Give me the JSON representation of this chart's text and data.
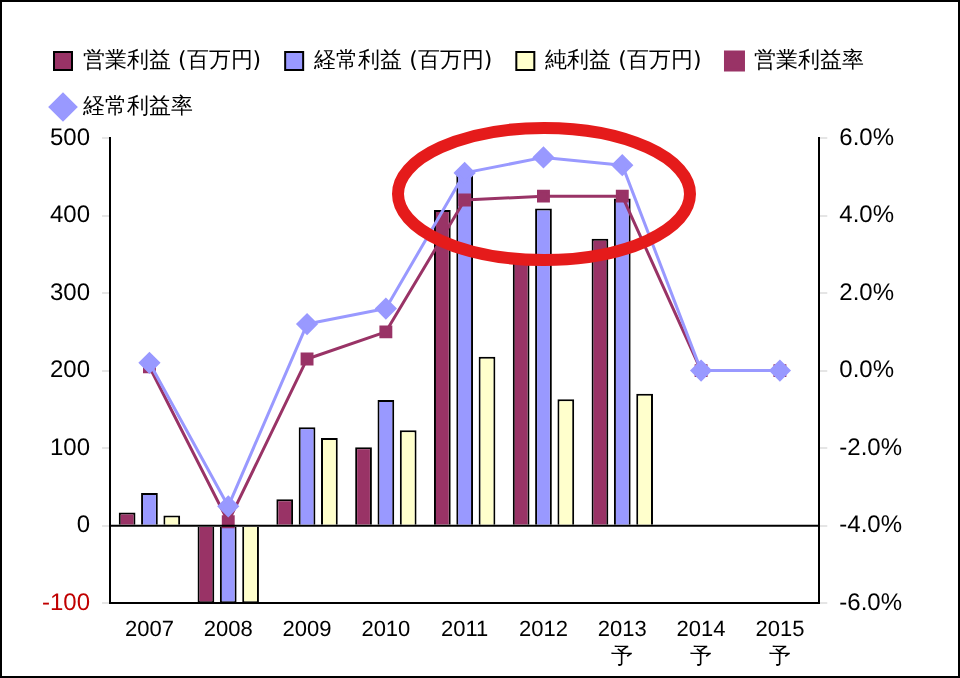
{
  "chart_data": {
    "type": "bar",
    "categories": [
      "2007",
      "2008",
      "2009",
      "2010",
      "2011",
      "2012",
      "2013\n予",
      "2014\n予",
      "2015\n予"
    ],
    "series": [
      {
        "name": "営業利益 (百万円)",
        "color": "#993366",
        "values": [
          17,
          -100,
          34,
          101,
          407,
          340,
          370,
          null,
          null
        ]
      },
      {
        "name": "経常利益 (百万円)",
        "color": "#9999ff",
        "values": [
          42,
          -100,
          127,
          162,
          455,
          409,
          422,
          null,
          null
        ]
      },
      {
        "name": "純利益 (百万円)",
        "color": "#ffffcc",
        "values": [
          13,
          -100,
          113,
          123,
          218,
          163,
          170,
          null,
          null
        ]
      },
      {
        "name": "営業利益率",
        "type": "line",
        "axis": "y2",
        "marker": "square",
        "color": "#993366",
        "values": [
          0.1,
          -3.9,
          0.3,
          1.0,
          4.4,
          4.5,
          4.5,
          0.0,
          0.0
        ]
      },
      {
        "name": "経常利益率",
        "type": "line",
        "axis": "y2",
        "marker": "diamond",
        "color": "#9999ff",
        "values": [
          0.2,
          -3.5,
          1.2,
          1.6,
          5.1,
          5.5,
          5.3,
          0.0,
          0.0
        ]
      }
    ],
    "ylim": [
      -100,
      500
    ],
    "yticks": [
      -100,
      0,
      100,
      200,
      300,
      400,
      500
    ],
    "y2lim": [
      -6,
      6
    ],
    "y2ticks": [
      {
        "value": -6,
        "label": "-6.0%"
      },
      {
        "value": -4,
        "label": "-4.0%"
      },
      {
        "value": -2,
        "label": "-2.0%"
      },
      {
        "value": 0,
        "label": "0.0%"
      },
      {
        "value": 2,
        "label": "2.0%"
      },
      {
        "value": 4,
        "label": "4.0%"
      },
      {
        "value": 6,
        "label": "6.0%"
      }
    ],
    "legend": "top"
  }
}
